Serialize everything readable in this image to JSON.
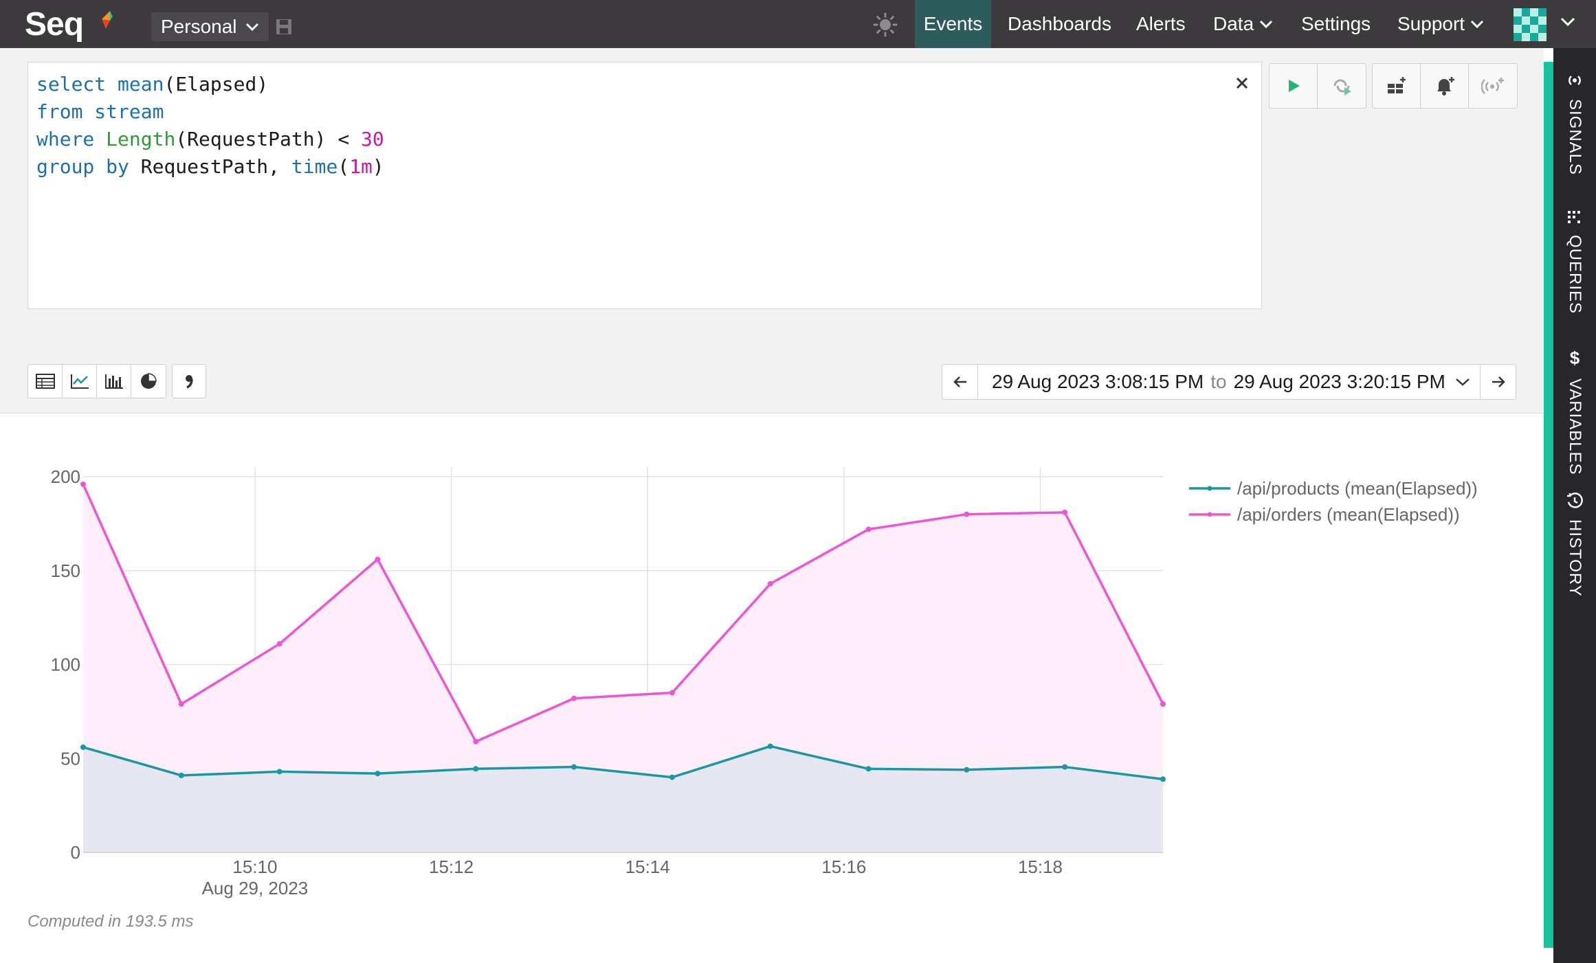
{
  "app": {
    "name": "Seq"
  },
  "header": {
    "workspace": "Personal",
    "nav": [
      {
        "label": "Events",
        "active": true
      },
      {
        "label": "Dashboards",
        "active": false
      },
      {
        "label": "Alerts",
        "active": false
      },
      {
        "label": "Data",
        "active": false,
        "dropdown": true
      },
      {
        "label": "Settings",
        "active": false
      },
      {
        "label": "Support",
        "active": false,
        "dropdown": true
      }
    ]
  },
  "rail": {
    "items": [
      {
        "label": "SIGNALS",
        "icon": "signal-icon"
      },
      {
        "label": "QUERIES",
        "icon": "queries-icon"
      },
      {
        "label": "VARIABLES",
        "icon": "dollar-icon"
      },
      {
        "label": "HISTORY",
        "icon": "history-icon"
      }
    ]
  },
  "query": {
    "lines": [
      [
        {
          "t": "select",
          "c": "kw"
        },
        {
          "t": " ",
          "c": "plain"
        },
        {
          "t": "mean",
          "c": "kw"
        },
        {
          "t": "(Elapsed)",
          "c": "plain"
        }
      ],
      [
        {
          "t": "from",
          "c": "kw"
        },
        {
          "t": " ",
          "c": "plain"
        },
        {
          "t": "stream",
          "c": "kw"
        }
      ],
      [
        {
          "t": "where",
          "c": "kw"
        },
        {
          "t": " ",
          "c": "plain"
        },
        {
          "t": "Length",
          "c": "fn"
        },
        {
          "t": "(RequestPath) < ",
          "c": "plain"
        },
        {
          "t": "30",
          "c": "num"
        }
      ],
      [
        {
          "t": "group",
          "c": "kw"
        },
        {
          "t": " ",
          "c": "plain"
        },
        {
          "t": "by",
          "c": "kw"
        },
        {
          "t": " RequestPath, ",
          "c": "plain"
        },
        {
          "t": "time",
          "c": "kw"
        },
        {
          "t": "(",
          "c": "plain"
        },
        {
          "t": "1m",
          "c": "num"
        },
        {
          "t": ")",
          "c": "plain"
        }
      ]
    ]
  },
  "range": {
    "from": "29 Aug 2023 3:08:15 PM",
    "to_word": "to",
    "to": "29 Aug 2023 3:20:15 PM"
  },
  "status": {
    "computed": "Computed in 193.5 ms"
  },
  "colors": {
    "topbar": "#3d3a3e",
    "accent": "#19c39a",
    "products": "#1a97a4",
    "orders": "#ed55d6"
  },
  "chart_data": {
    "type": "area",
    "x": [
      "15:08:15",
      "15:09:15",
      "15:10:15",
      "15:11:15",
      "15:12:15",
      "15:13:15",
      "15:14:15",
      "15:15:15",
      "15:16:15",
      "15:17:15",
      "15:18:15",
      "15:19:15"
    ],
    "x_start": "15:08:15",
    "xticks": [
      {
        "x": "15:10",
        "label": "15:10",
        "sublabel": "Aug 29, 2023"
      },
      {
        "x": "15:12",
        "label": "15:12"
      },
      {
        "x": "15:14",
        "label": "15:14"
      },
      {
        "x": "15:16",
        "label": "15:16"
      },
      {
        "x": "15:18",
        "label": "15:18"
      }
    ],
    "yticks": [
      0,
      50,
      100,
      150,
      200
    ],
    "ylim": [
      0,
      200
    ],
    "grid": true,
    "legend": "top-right",
    "series": [
      {
        "name": "/api/products (mean(Elapsed))",
        "color": "#1a97a4",
        "fill": "#e7e7f2",
        "values": [
          56,
          41,
          43,
          42,
          44.5,
          45.5,
          40,
          56.5,
          44.5,
          44,
          45.5,
          39
        ]
      },
      {
        "name": "/api/orders (mean(Elapsed))",
        "color": "#ed55d6",
        "fill": "#fdeefa",
        "values": [
          196,
          79,
          111,
          156,
          59,
          82,
          85,
          143,
          172,
          180,
          181,
          79
        ]
      }
    ]
  }
}
